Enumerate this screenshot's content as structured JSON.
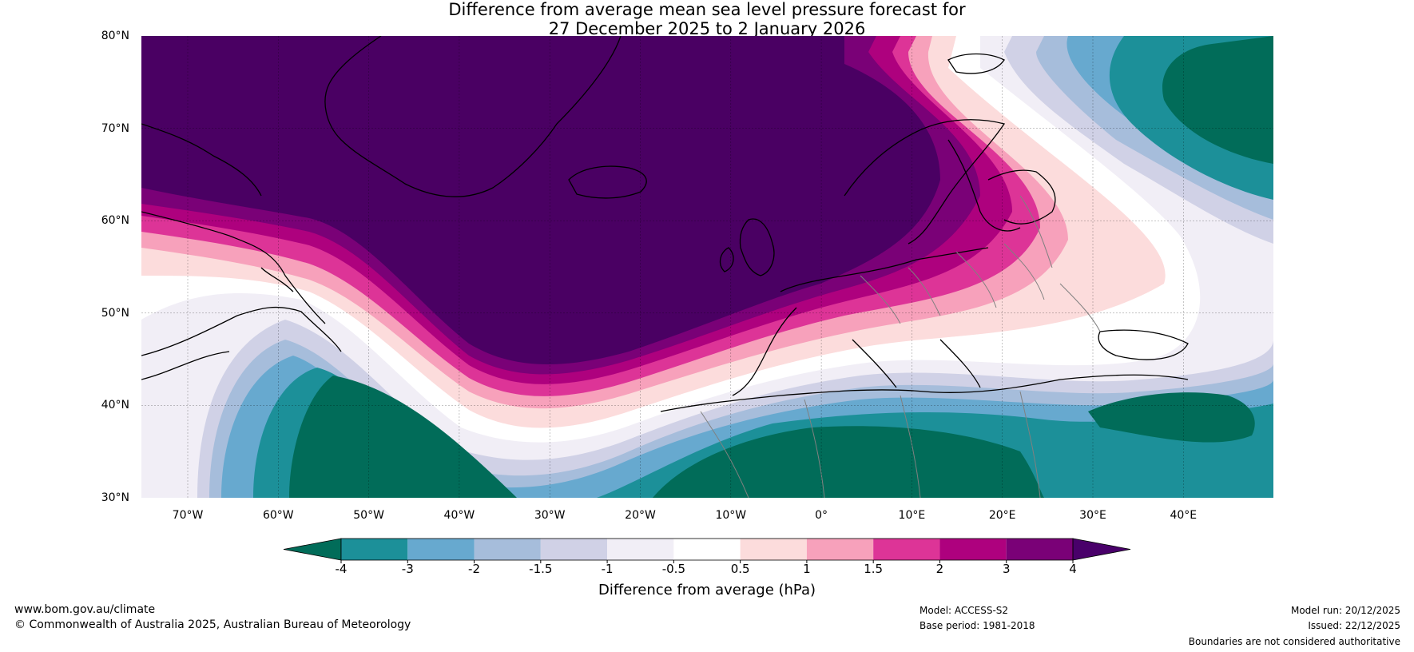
{
  "title": {
    "line1": "Difference from average mean sea level pressure forecast for",
    "line2": "27 December 2025 to 2 January 2026"
  },
  "map": {
    "latitude_labels": [
      "80°N",
      "70°N",
      "60°N",
      "50°N",
      "40°N",
      "30°N"
    ],
    "longitude_labels": [
      "70°W",
      "60°W",
      "50°W",
      "40°W",
      "30°W",
      "20°W",
      "10°W",
      "0°",
      "10°E",
      "20°E",
      "30°E",
      "40°E"
    ]
  },
  "colorbar": {
    "ticks": [
      "-4",
      "-3",
      "-2",
      "-1.5",
      "-1",
      "-0.5",
      "0.5",
      "1",
      "1.5",
      "2",
      "3",
      "4"
    ],
    "colors": [
      "#016c59",
      "#1c9099",
      "#67a9cf",
      "#a6bddb",
      "#d0d1e6",
      "#f1eef6",
      "#ffffff",
      "#fcdcdc",
      "#f7a1bb",
      "#dd3497",
      "#ae017e",
      "#7a0177",
      "#49006a"
    ],
    "label": "Difference from average (hPa)"
  },
  "footer": {
    "website": "www.bom.gov.au/climate",
    "copyright": "© Commonwealth of Australia 2025, Australian Bureau of Meteorology",
    "model": "Model: ACCESS-S2",
    "base_period": "Base period: 1981-2018",
    "model_run": "Model run: 20/12/2025",
    "issued": "Issued: 22/12/2025",
    "disclaimer": "Boundaries are not considered authoritative"
  }
}
